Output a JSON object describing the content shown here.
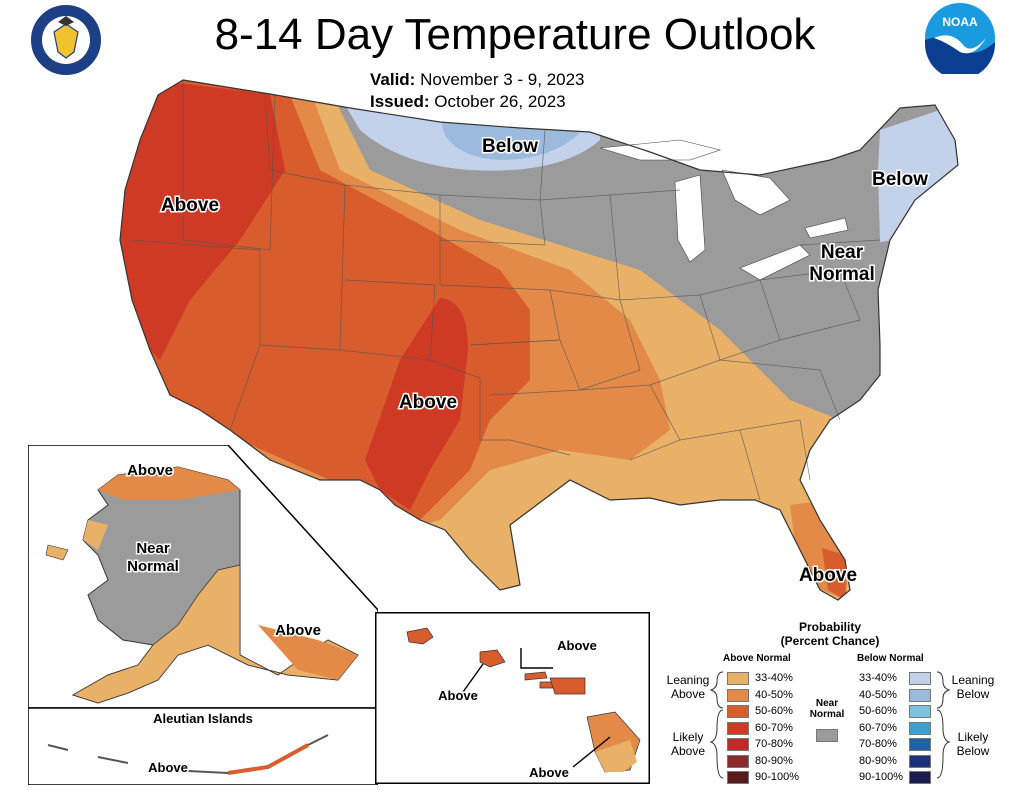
{
  "header": {
    "title": "8-14 Day Temperature Outlook",
    "valid_label": "Valid:",
    "valid_value": "November 3 - 9, 2023",
    "issued_label": "Issued:",
    "issued_value": "October 26, 2023"
  },
  "logos": {
    "commerce": "Department of Commerce seal",
    "noaa": "NOAA"
  },
  "map_labels": {
    "conus_above_west": "Above",
    "conus_above_south": "Above",
    "conus_below_north": "Below",
    "conus_below_ne": "Below",
    "conus_near_normal_line1": "Near",
    "conus_near_normal_line2": "Normal",
    "conus_above_florida": "Above",
    "alaska_above_north": "Above",
    "alaska_near_normal_line1": "Near",
    "alaska_near_normal_line2": "Normal",
    "alaska_above_southeast": "Above",
    "aleutian_title": "Aleutian Islands",
    "aleutian_above": "Above",
    "hawaii_above_1": "Above",
    "hawaii_above_2": "Above",
    "hawaii_above_3": "Above"
  },
  "legend": {
    "title_line1": "Probability",
    "title_line2": "(Percent Chance)",
    "above_header": "Above Normal",
    "below_header": "Below Normal",
    "near_normal_line1": "Near",
    "near_normal_line2": "Normal",
    "leaning_above_line1": "Leaning",
    "leaning_above_line2": "Above",
    "likely_above_line1": "Likely",
    "likely_above_line2": "Above",
    "leaning_below_line1": "Leaning",
    "leaning_below_line2": "Below",
    "likely_below_line1": "Likely",
    "likely_below_line2": "Below",
    "bins": [
      "33-40%",
      "40-50%",
      "50-60%",
      "60-70%",
      "70-80%",
      "80-90%",
      "90-100%"
    ],
    "above_colors": [
      "#e8b167",
      "#e38a49",
      "#d85c2c",
      "#cf3a25",
      "#c22a2a",
      "#8c2a2a",
      "#5a1a1a"
    ],
    "below_colors": [
      "#c3d1ea",
      "#9bbadd",
      "#7cc3e2",
      "#3f9ed0",
      "#1d63a3",
      "#1e2f7c",
      "#1b1b4f"
    ],
    "near_normal_color": "#9b9b9b"
  },
  "colors": {
    "above_33_40": "#e8b167",
    "above_40_50": "#e38a49",
    "above_50_60": "#d85c2c",
    "above_60_70": "#cf3a25",
    "near_normal": "#9b9b9b",
    "below_33_40": "#c3d1ea",
    "below_40_50": "#9bbadd"
  }
}
